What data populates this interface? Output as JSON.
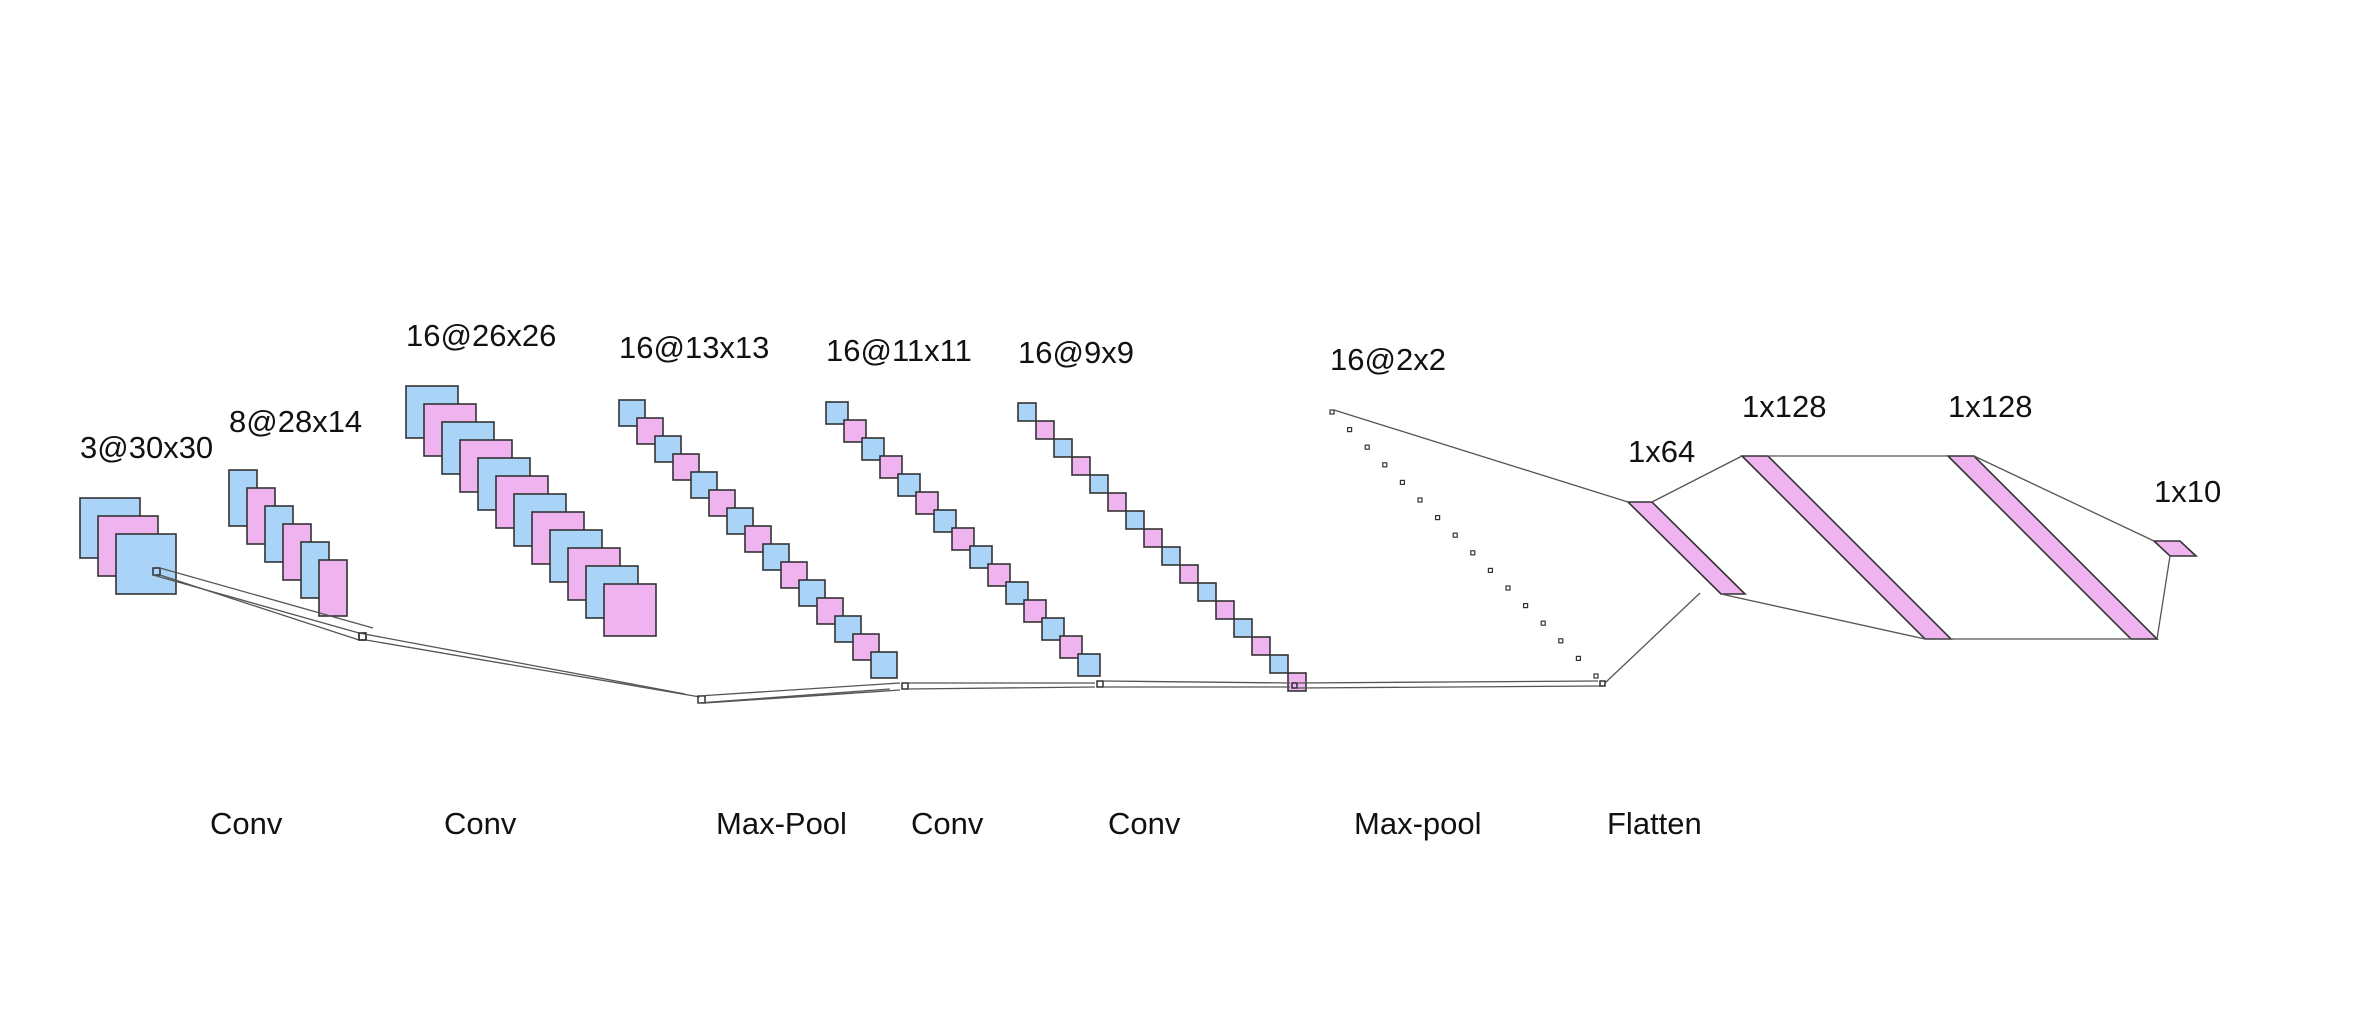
{
  "colors": {
    "blue": "#a9d4f7",
    "pink": "#efb4ef",
    "stroke": "#333333",
    "line": "#555555"
  },
  "layers": [
    {
      "shape": "3@30x30"
    },
    {
      "shape": "8@28x14"
    },
    {
      "shape": "16@26x26"
    },
    {
      "shape": "16@13x13"
    },
    {
      "shape": "16@11x11"
    },
    {
      "shape": "16@9x9"
    },
    {
      "shape": "16@2x2"
    },
    {
      "shape": "1x64"
    },
    {
      "shape": "1x128"
    },
    {
      "shape": "1x128"
    },
    {
      "shape": "1x10"
    }
  ],
  "operations": [
    {
      "label": "Conv"
    },
    {
      "label": "Conv"
    },
    {
      "label": "Max-Pool"
    },
    {
      "label": "Conv"
    },
    {
      "label": "Conv"
    },
    {
      "label": "Max-pool"
    },
    {
      "label": "Flatten"
    }
  ]
}
